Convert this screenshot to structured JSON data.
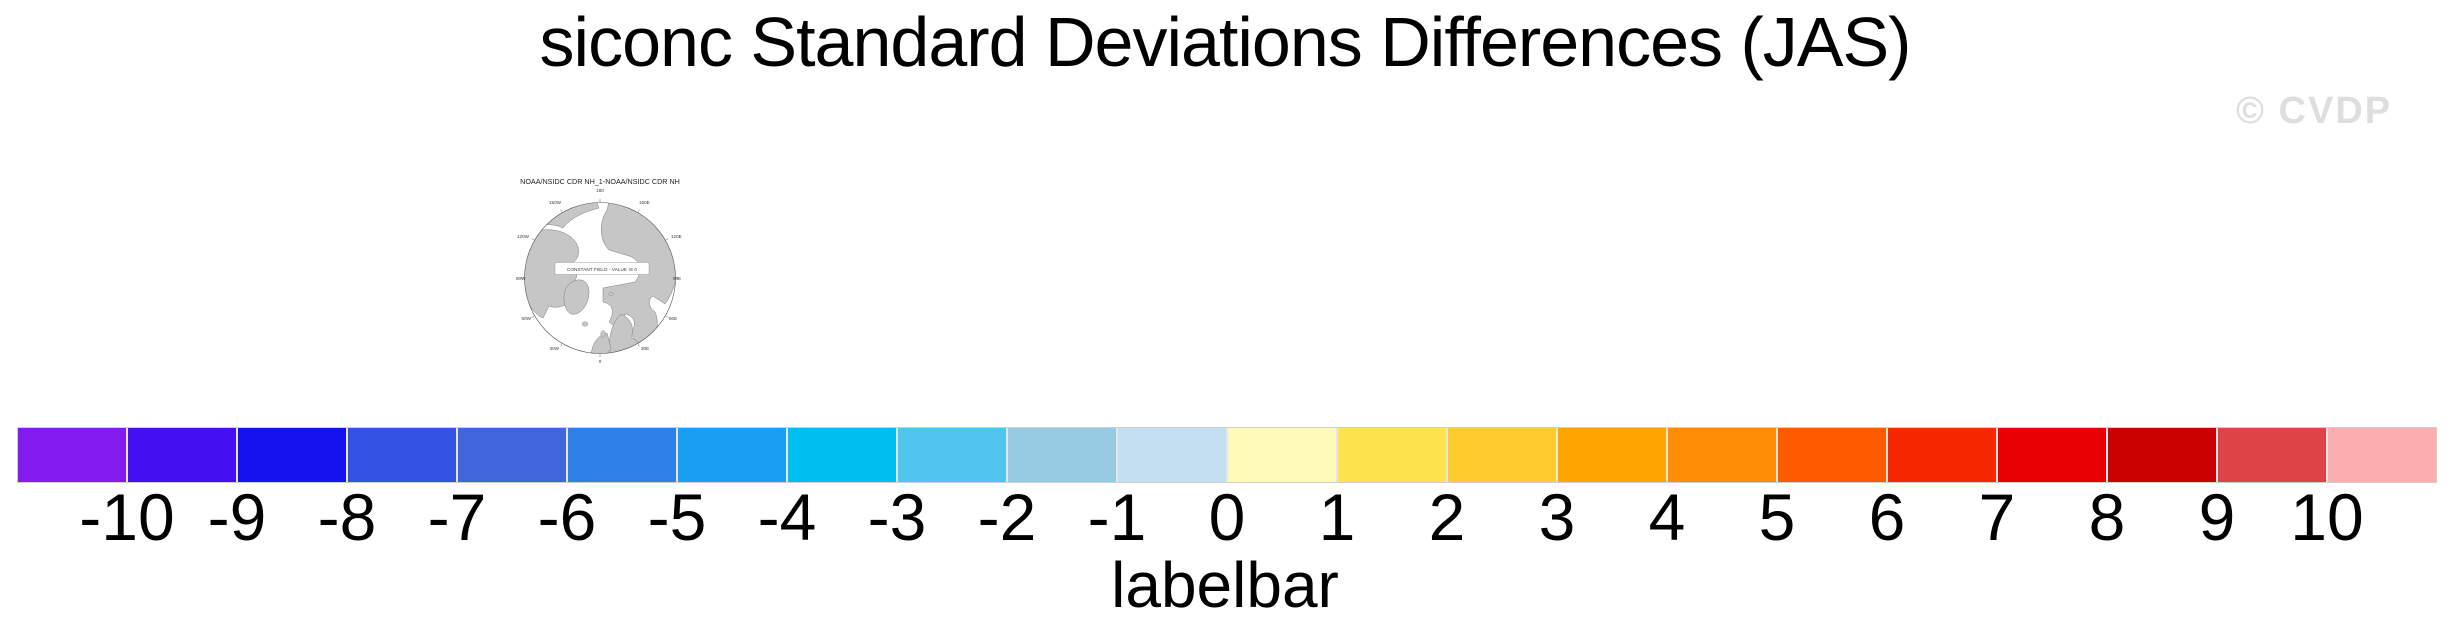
{
  "figure": {
    "title": "siconc Standard Deviations Differences (JAS)",
    "watermark": "© CVDP",
    "caption": "labelbar"
  },
  "map": {
    "title": "NOAA/NSIDC CDR NH_1-NOAA/NSIDC CDR NH",
    "center_label": "CONSTANT FIELD - VALUE IS 0",
    "lon_labels": [
      "180",
      "150W",
      "150E",
      "120W",
      "120E",
      "90W",
      "90E",
      "60W",
      "60E",
      "30W",
      "30E",
      "0"
    ]
  },
  "chart_data": {
    "type": "heatmap",
    "title": "siconc Standard Deviations Differences (JAS)",
    "panel_title": "NOAA/NSIDC CDR NH_1-NOAA/NSIDC CDR NH",
    "panel_note": "CONSTANT FIELD - VALUE IS 0",
    "projection": "north-polar-stereographic",
    "colorbar": {
      "label": "labelbar",
      "ticks": [
        "-10",
        "-9",
        "-8",
        "-7",
        "-6",
        "-5",
        "-4",
        "-3",
        "-2",
        "-1",
        "0",
        "1",
        "2",
        "3",
        "4",
        "5",
        "6",
        "7",
        "8",
        "9",
        "10"
      ],
      "tick_range": [
        -10,
        10
      ],
      "colors": [
        "#841BEE",
        "#4410F0",
        "#1512F0",
        "#3351E2",
        "#3F66DC",
        "#2E80E8",
        "#189EF2",
        "#00BFF0",
        "#4FC5ED",
        "#96CBE3",
        "#C3DFF1",
        "#FDF9B8",
        "#FEE44C",
        "#FFCB2E",
        "#FFA602",
        "#FF8D05",
        "#FF5A00",
        "#F72800",
        "#E90005",
        "#CB0101",
        "#DE4347",
        "#FCADB0"
      ]
    }
  }
}
